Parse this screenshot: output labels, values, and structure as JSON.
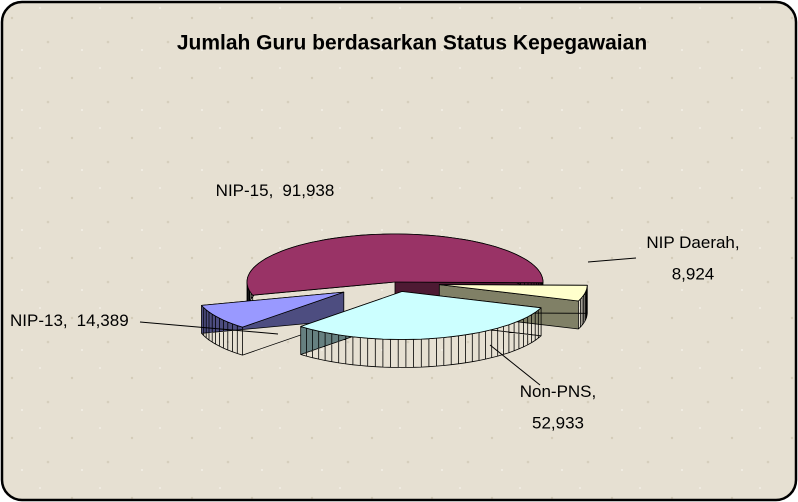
{
  "chart_data": {
    "type": "pie",
    "title": "Jumlah Guru berdasarkan Status Kepegawaian",
    "categories": [
      "NIP-15",
      "NIP Daerah",
      "Non-PNS",
      "NIP-13"
    ],
    "values": [
      91938,
      8924,
      52933,
      14389
    ],
    "value_labels": [
      "91,938",
      "8,924",
      "52,933",
      "14,389"
    ],
    "label_separator": ",",
    "colors": [
      "#993366",
      "#ffffcc",
      "#ccffff",
      "#9999ff"
    ]
  }
}
